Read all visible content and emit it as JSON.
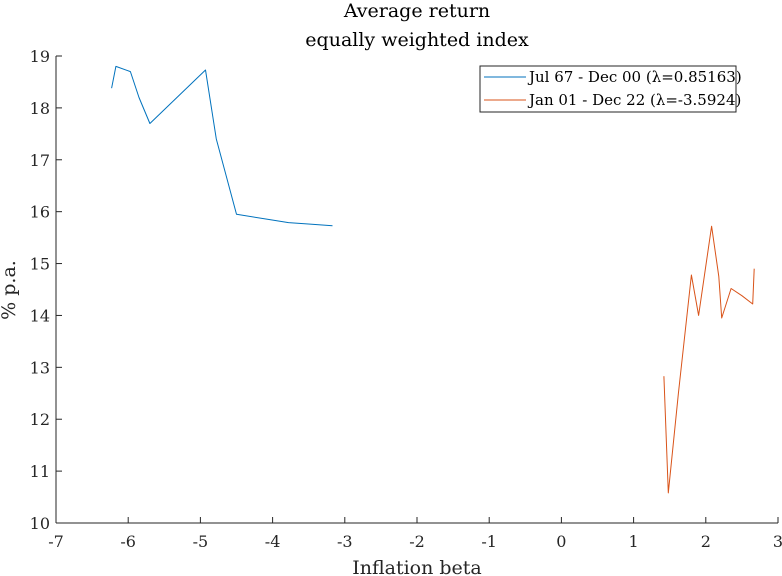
{
  "chart_data": {
    "type": "line",
    "title": "Average return",
    "subtitle": "equally weighted index",
    "xlabel": "Inflation beta",
    "ylabel": "% p.a.",
    "xlim": [
      -7,
      3
    ],
    "ylim": [
      10,
      19
    ],
    "xticks": [
      "-7",
      "-6",
      "-5",
      "-4",
      "-3",
      "-2",
      "-1",
      "0",
      "1",
      "2",
      "3"
    ],
    "yticks": [
      "10",
      "11",
      "12",
      "13",
      "14",
      "15",
      "16",
      "17",
      "18",
      "19"
    ],
    "grid": false,
    "legend_position": "top-right",
    "series": [
      {
        "name": "Jul 67 - Dec 00 (λ=0.85163)",
        "color": "#0072BD",
        "x": [
          -6.23,
          -6.17,
          -5.97,
          -5.85,
          -5.7,
          -4.93,
          -4.78,
          -4.5,
          -4.05,
          -3.78,
          -3.48,
          -3.17
        ],
        "y": [
          18.38,
          18.8,
          18.7,
          18.2,
          17.7,
          18.73,
          17.4,
          15.95,
          15.85,
          15.79,
          15.76,
          15.73
        ]
      },
      {
        "name": "Jan 01 - Dec 22 (λ=-3.5924)",
        "color": "#D95319",
        "x": [
          1.42,
          1.48,
          1.62,
          1.8,
          1.9,
          2.08,
          2.18,
          2.22,
          2.35,
          2.5,
          2.65,
          2.67
        ],
        "y": [
          12.83,
          10.58,
          12.5,
          14.78,
          14.0,
          15.72,
          14.75,
          13.95,
          14.52,
          14.38,
          14.22,
          14.9
        ]
      }
    ]
  }
}
